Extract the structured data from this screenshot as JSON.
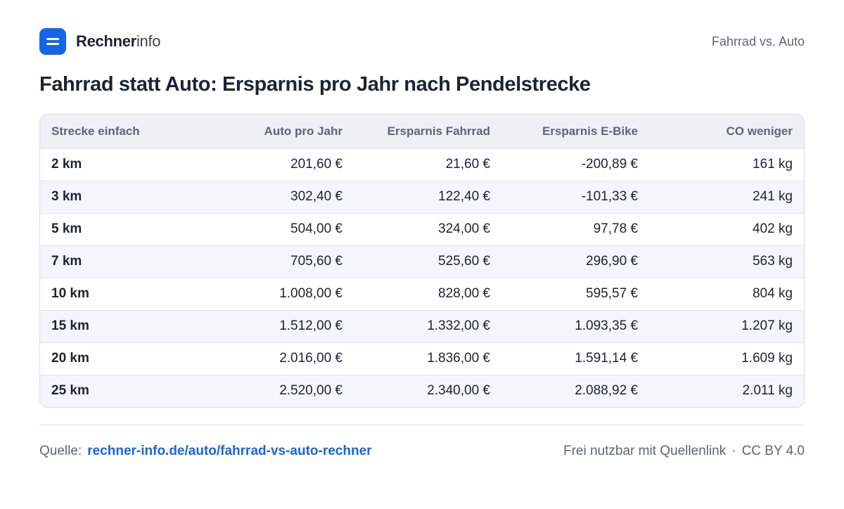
{
  "brand": {
    "bold": "Rechner",
    "light": "info"
  },
  "header": {
    "topic": "Fahrrad vs. Auto"
  },
  "title": "Fahrrad statt Auto: Ersparnis pro Jahr nach Pendelstrecke",
  "table": {
    "columns": [
      "Strecke einfach",
      "Auto pro Jahr",
      "Ersparnis Fahrrad",
      "Ersparnis E-Bike",
      "CO  weniger"
    ],
    "rows": [
      [
        "2 km",
        "201,60 €",
        "21,60 €",
        "-200,89 €",
        "161 kg"
      ],
      [
        "3 km",
        "302,40 €",
        "122,40 €",
        "-101,33 €",
        "241 kg"
      ],
      [
        "5 km",
        "504,00 €",
        "324,00 €",
        "97,78 €",
        "402 kg"
      ],
      [
        "7 km",
        "705,60 €",
        "525,60 €",
        "296,90 €",
        "563 kg"
      ],
      [
        "10 km",
        "1.008,00 €",
        "828,00 €",
        "595,57 €",
        "804 kg"
      ],
      [
        "15 km",
        "1.512,00 €",
        "1.332,00 €",
        "1.093,35 €",
        "1.207 kg"
      ],
      [
        "20 km",
        "2.016,00 €",
        "1.836,00 €",
        "1.591,14 €",
        "1.609 kg"
      ],
      [
        "25 km",
        "2.520,00 €",
        "2.340,00 €",
        "2.088,92 €",
        "2.011 kg"
      ]
    ]
  },
  "footer": {
    "source_label": "Quelle:",
    "source_link": "rechner-info.de/auto/fahrrad-vs-auto-rechner",
    "license_text": "Frei nutzbar mit Quellenlink",
    "separator": "·",
    "license": "CC BY 4.0"
  },
  "colors": {
    "accent": "#1565e8",
    "text": "#1b2433",
    "muted": "#5b6675",
    "header_bg": "#edf1f6",
    "stripe": "#f3f6fa"
  }
}
